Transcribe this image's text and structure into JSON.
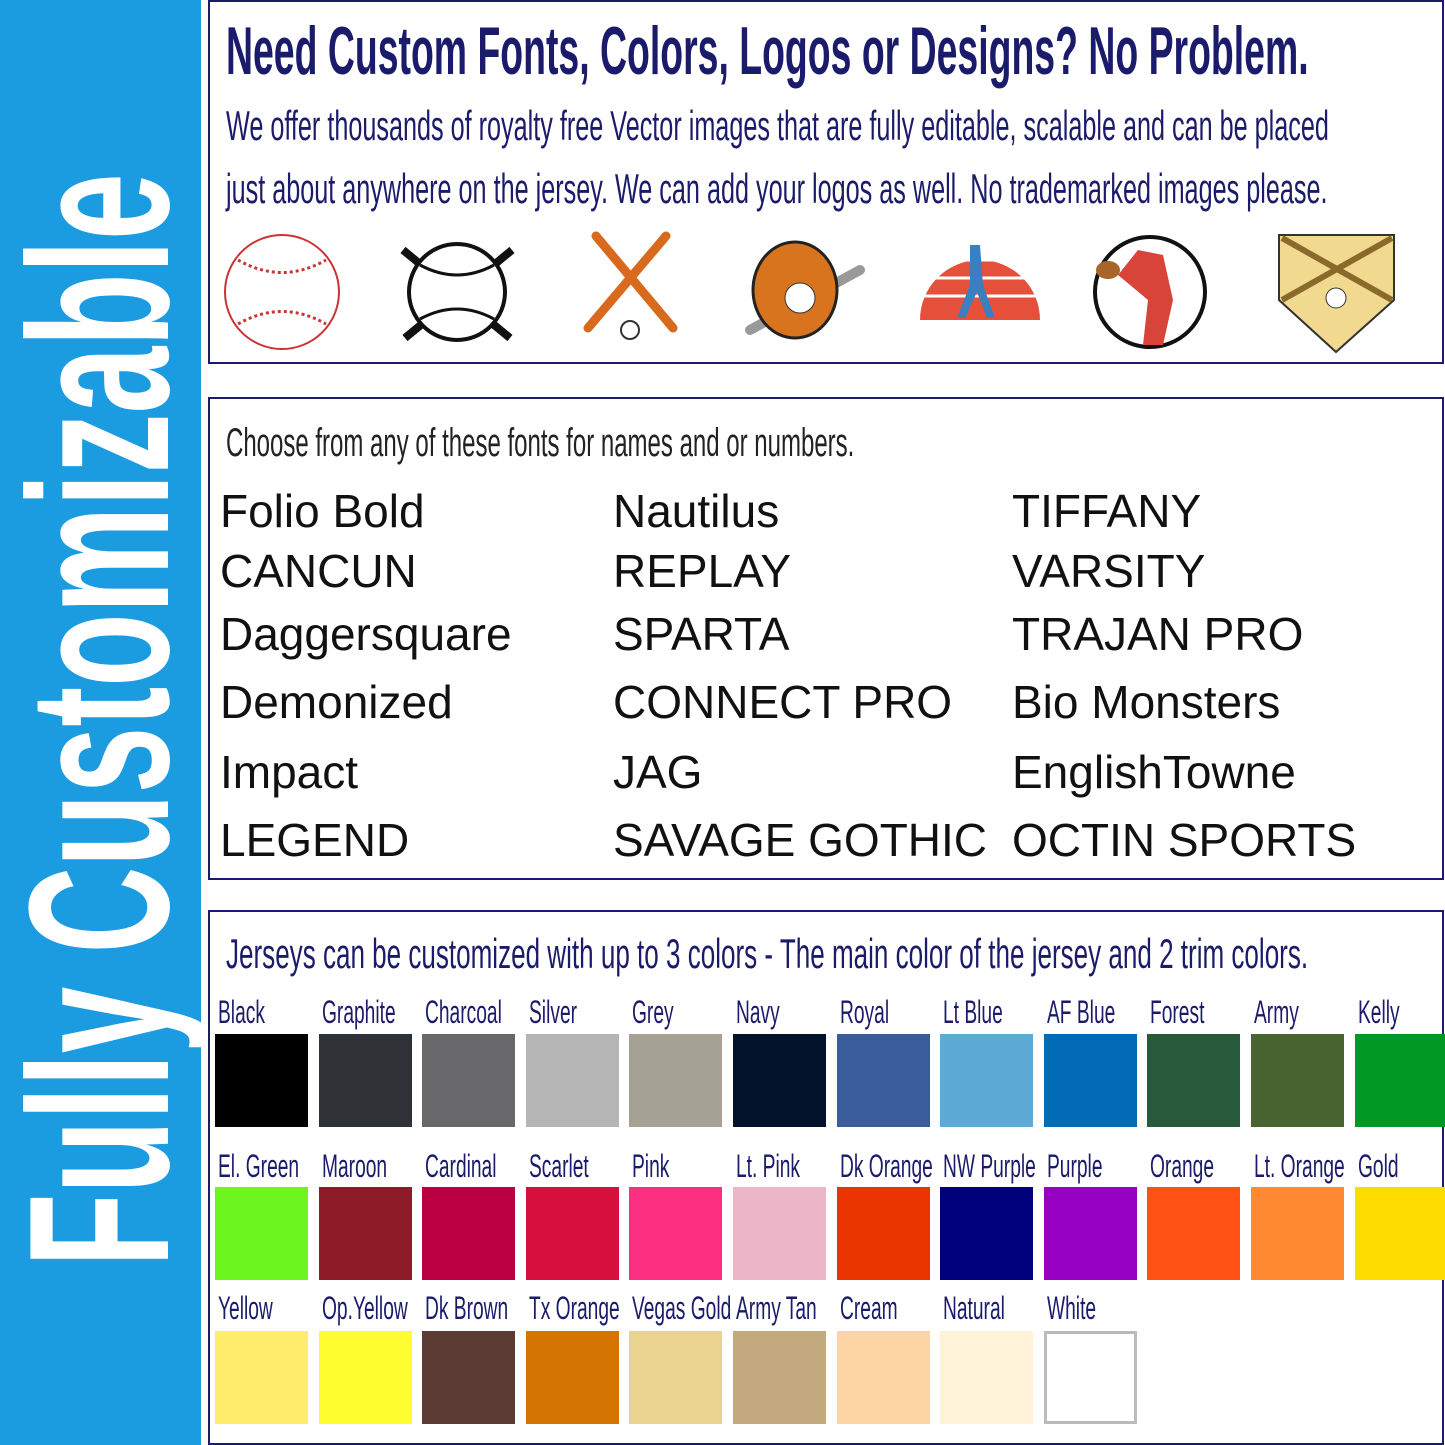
{
  "sidebar": {
    "text": "Fully Customizable",
    "color": "#1b9be0"
  },
  "header": {
    "title": "Need Custom Fonts, Colors, Logos or Designs? No Problem.",
    "line1": "We offer thousands of royalty free Vector images that are fully editable, scalable and can be placed",
    "line2": "just about anywhere on the jersey.  We can add your logos as well.  No trademarked images please.",
    "icons": [
      "baseball-icon",
      "baseball-crossed-bats-icon",
      "crossed-bats-ball-icon",
      "glove-bat-icon",
      "batter-sunset-icon",
      "pitcher-icon",
      "home-plate-bats-icon"
    ]
  },
  "fonts": {
    "heading": "Choose from any of these fonts for names and or numbers.",
    "columns": [
      [
        "Folio Bold",
        "CANCUN",
        "Daggersquare",
        "Demonized",
        "Impact",
        "LEGEND"
      ],
      [
        "Nautilus",
        "REPLAY",
        "SPARTA",
        "CONNECT PRO",
        "JAG",
        "SAVAGE GOTHIC"
      ],
      [
        "TIFFANY",
        "VARSITY",
        "TRAJAN PRO",
        "Bio Monsters",
        "EnglishTowne",
        "OCTIN SPORTS"
      ]
    ]
  },
  "colors": {
    "heading": "Jerseys can be customized with up to 3 colors - The main color of the jersey and 2 trim colors.",
    "rows": [
      [
        {
          "name": "Black",
          "hex": "#000000"
        },
        {
          "name": "Graphite",
          "hex": "#2e3135"
        },
        {
          "name": "Charcoal",
          "hex": "#68686b"
        },
        {
          "name": "Silver",
          "hex": "#b5b5b5"
        },
        {
          "name": "Grey",
          "hex": "#a6a293"
        },
        {
          "name": "Navy",
          "hex": "#02122b"
        },
        {
          "name": "Royal",
          "hex": "#3a5c9b"
        },
        {
          "name": "Lt Blue",
          "hex": "#5eaad6"
        },
        {
          "name": "AF Blue",
          "hex": "#016bb5"
        },
        {
          "name": "Forest",
          "hex": "#265a3b"
        },
        {
          "name": "Army",
          "hex": "#4a6431"
        },
        {
          "name": "Kelly",
          "hex": "#019923"
        }
      ],
      [
        {
          "name": "El. Green",
          "hex": "#6cf51f"
        },
        {
          "name": "Maroon",
          "hex": "#8e1c28"
        },
        {
          "name": "Cardinal",
          "hex": "#bb0041"
        },
        {
          "name": "Scarlet",
          "hex": "#d70f3c"
        },
        {
          "name": "Pink",
          "hex": "#fc2f80"
        },
        {
          "name": "Lt. Pink",
          "hex": "#ebb6c8"
        },
        {
          "name": "Dk Orange",
          "hex": "#ea3500"
        },
        {
          "name": "NW Purple",
          "hex": "#01017b"
        },
        {
          "name": "Purple",
          "hex": "#9600c2"
        },
        {
          "name": "Orange",
          "hex": "#fe5113"
        },
        {
          "name": "Lt. Orange",
          "hex": "#ff8a32"
        },
        {
          "name": "Gold",
          "hex": "#fedc00"
        }
      ],
      [
        {
          "name": "Yellow",
          "hex": "#feed6d"
        },
        {
          "name": "Op.Yellow",
          "hex": "#fdfd30"
        },
        {
          "name": "Dk Brown",
          "hex": "#5b3a34"
        },
        {
          "name": "Tx Orange",
          "hex": "#d47501"
        },
        {
          "name": "Vegas Gold",
          "hex": "#ead38e"
        },
        {
          "name": "Army Tan",
          "hex": "#c2a97e"
        },
        {
          "name": "Cream",
          "hex": "#fdd4a4"
        },
        {
          "name": "Natural",
          "hex": "#fff2d8"
        },
        {
          "name": "White",
          "hex": "#ffffff"
        }
      ]
    ]
  }
}
